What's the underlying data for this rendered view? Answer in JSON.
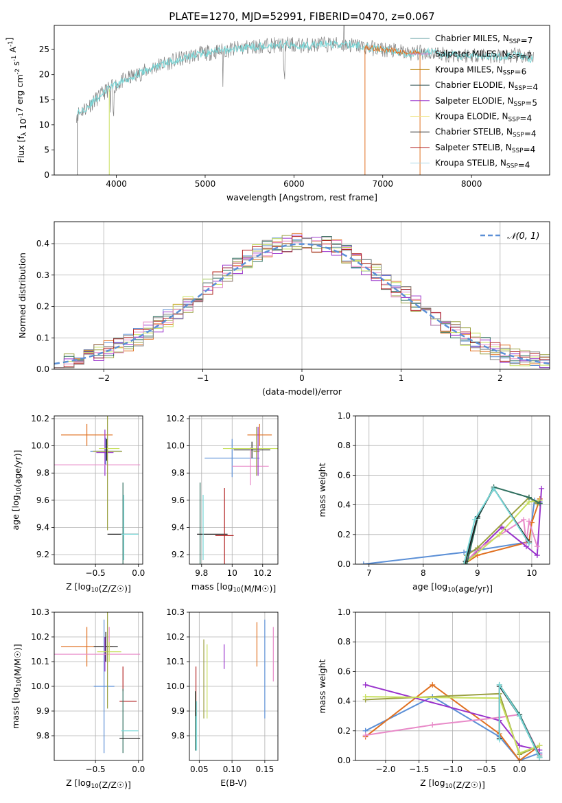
{
  "figure_title": "PLATE=1270, MJD=52991, FIBERID=0470, z=0.067",
  "chart_data": [
    {
      "id": "spectrum",
      "type": "line",
      "title": "PLATE=1270, MJD=52991, FIBERID=0470, z=0.067",
      "xlabel": "wavelength [Angstrom, rest frame]",
      "ylabel": "Flux [f_λ 10^-17 erg cm^-2 s^-1 A^-1]",
      "xlim": [
        3300,
        8880
      ],
      "ylim": [
        0,
        29.8
      ],
      "xticks": [
        4000,
        5000,
        6000,
        7000,
        8000
      ],
      "yticks": [
        0,
        5,
        10,
        15,
        20,
        25
      ],
      "legend_position": "right",
      "legend": [
        {
          "label": "Chabrier MILES, N_SSP=7",
          "color": "#5f9ea0"
        },
        {
          "label": "Salpeter MILES, N_SSP=7",
          "color": "#da70d6"
        },
        {
          "label": "Kroupa MILES, N_SSP=6",
          "color": "#b8860b"
        },
        {
          "label": "Chabrier ELODIE, N_SSP=4",
          "color": "#2f4f4f"
        },
        {
          "label": "Salpeter ELODIE, N_SSP=5",
          "color": "#9932cc"
        },
        {
          "label": "Kroupa ELODIE, N_SSP=4",
          "color": "#f0e68c"
        },
        {
          "label": "Chabrier STELIB, N_SSP=4",
          "color": "#2e2e2e"
        },
        {
          "label": "Salpeter STELIB, N_SSP=4",
          "color": "#b22222"
        },
        {
          "label": "Kroupa STELIB, N_SSP=4",
          "color": "#add8e6"
        }
      ],
      "continuum": {
        "x": [
          3550,
          3700,
          3900,
          4100,
          4300,
          4500,
          4700,
          4900,
          5100,
          5300,
          5500,
          5700,
          5900,
          6100,
          6300,
          6500,
          6700,
          6900,
          7100,
          7300,
          7500,
          7700,
          7900,
          8100,
          8300,
          8500,
          8700
        ],
        "y": [
          12.0,
          14.0,
          17.0,
          19.0,
          20.5,
          22.0,
          23.0,
          24.0,
          24.5,
          25.0,
          25.5,
          25.8,
          26.0,
          25.8,
          26.0,
          26.0,
          25.8,
          25.2,
          24.8,
          24.2,
          24.5,
          24.0,
          23.8,
          24.0,
          23.5,
          23.8,
          23.0
        ]
      },
      "colors": {
        "data": "#808080",
        "model": "#78d8d8",
        "orange": "#e07020"
      }
    },
    {
      "id": "residuals",
      "type": "histogram",
      "xlabel": "(data-model)/error",
      "ylabel": "Normed distribution",
      "xlim": [
        -2.5,
        2.5
      ],
      "ylim": [
        0,
        0.47
      ],
      "xticks": [
        -2,
        -1,
        0,
        1,
        2
      ],
      "yticks": [
        0,
        0.1,
        0.2,
        0.3,
        0.4
      ],
      "bins": 50,
      "legend": [
        {
          "label": "𝒩(0, 1)",
          "color": "#5b8fd6"
        }
      ],
      "hist_colors": [
        "#5b8fd6",
        "#e07020",
        "#9aa040",
        "#2f6f5f",
        "#9932cc",
        "#c8e060",
        "#e88ac8",
        "#b22222",
        "#8a8a8a"
      ]
    },
    {
      "id": "age-vs-z",
      "type": "errorbar",
      "xlabel": "Z [log10(Z/Z☉)]",
      "ylabel": "age [log10(age/yr)]",
      "xlim": [
        -0.98,
        0.05
      ],
      "ylim": [
        9.13,
        10.22
      ],
      "xticks": [
        -0.5,
        0.0
      ],
      "xticklabels": [
        "−0.5",
        "0.0"
      ],
      "yticks": [
        9.2,
        9.4,
        9.6,
        9.8,
        10.0,
        10.2
      ],
      "points": [
        {
          "x": -0.6,
          "y": 10.08,
          "xerr": 0.3,
          "yerr": 0.08,
          "color": "#e07020"
        },
        {
          "x": -0.38,
          "y": 9.96,
          "xerr": 0.18,
          "yerr": 0.1,
          "color": "#5b8fd6"
        },
        {
          "x": -0.39,
          "y": 9.95,
          "xerr": 0.1,
          "yerr": 0.17,
          "color": "#9932cc"
        },
        {
          "x": -0.48,
          "y": 9.86,
          "xerr": 0.5,
          "yerr": 0.0,
          "color": "#e88ac8"
        },
        {
          "x": -0.36,
          "y": 9.96,
          "xerr": 0.17,
          "yerr": 0.58,
          "color": "#9aa040"
        },
        {
          "x": -0.34,
          "y": 9.98,
          "xerr": 0.12,
          "yerr": 0.0,
          "color": "#c8e060"
        },
        {
          "x": -0.37,
          "y": 9.97,
          "xerr": 0.0,
          "yerr": 0.08,
          "color": "#1f1f1f"
        },
        {
          "x": -0.18,
          "y": 9.35,
          "xerr": 0.0,
          "yerr": 0.38,
          "color": "#2f6f5f"
        },
        {
          "x": -0.18,
          "y": 9.35,
          "xerr": 0.18,
          "yerr": 0.0,
          "color": "#1f1f1f"
        },
        {
          "x": -0.17,
          "y": 9.4,
          "xerr": 0.0,
          "yerr": 0.24,
          "color": "#78d8d8"
        },
        {
          "x": -0.1,
          "y": 9.35,
          "xerr": 0.1,
          "yerr": 0.0,
          "color": "#78d8d8"
        }
      ]
    },
    {
      "id": "age-vs-mass",
      "type": "errorbar",
      "xlabel": "mass [log10(M/M☉)]",
      "xlim": [
        9.72,
        10.3
      ],
      "ylim": [
        9.13,
        10.22
      ],
      "xticks": [
        9.8,
        10.0,
        10.2
      ],
      "yticks": [
        9.2,
        9.4,
        9.6,
        9.8,
        10.0,
        10.2
      ],
      "points": [
        {
          "x": 10.18,
          "y": 10.08,
          "xerr": 0.08,
          "yerr": 0.08,
          "color": "#e07020"
        },
        {
          "x": 10.0,
          "y": 9.91,
          "xerr": 0.18,
          "yerr": 0.14,
          "color": "#5b8fd6"
        },
        {
          "x": 10.13,
          "y": 9.97,
          "xerr": 0.12,
          "yerr": 0.06,
          "color": "#1f1f1f"
        },
        {
          "x": 10.12,
          "y": 9.85,
          "xerr": 0.12,
          "yerr": 0.14,
          "color": "#e88ac8"
        },
        {
          "x": 10.14,
          "y": 9.98,
          "xerr": 0.2,
          "yerr": 0.0,
          "color": "#c8e060"
        },
        {
          "x": 10.16,
          "y": 9.96,
          "xerr": 0.02,
          "yerr": 0.18,
          "color": "#9aa040"
        },
        {
          "x": 10.17,
          "y": 9.96,
          "xerr": 0.0,
          "yerr": 0.18,
          "color": "#9932cc"
        },
        {
          "x": 9.79,
          "y": 9.35,
          "xerr": 0.0,
          "yerr": 0.38,
          "color": "#2f6f5f"
        },
        {
          "x": 9.87,
          "y": 9.35,
          "xerr": 0.1,
          "yerr": 0.0,
          "color": "#1f1f1f"
        },
        {
          "x": 9.81,
          "y": 9.4,
          "xerr": 0.0,
          "yerr": 0.24,
          "color": "#78d8d8"
        },
        {
          "x": 9.95,
          "y": 9.34,
          "xerr": 0.06,
          "yerr": 0.35,
          "color": "#b22222"
        }
      ]
    },
    {
      "id": "weight-vs-age",
      "type": "line",
      "xlabel": "age [log10(age/yr)]",
      "ylabel": "mass weight",
      "xlim": [
        6.75,
        10.33
      ],
      "ylim": [
        0,
        1.0
      ],
      "xticks": [
        7,
        8,
        9,
        10
      ],
      "yticks": [
        0.0,
        0.2,
        0.4,
        0.6,
        0.8,
        1.0
      ],
      "series": [
        {
          "color": "#5b8fd6",
          "x": [
            6.9,
            8.75,
            9.95,
            10.05,
            10.15
          ],
          "y": [
            0.0,
            0.08,
            0.15,
            0.43,
            0.42
          ]
        },
        {
          "color": "#e07020",
          "x": [
            8.75,
            9.0,
            9.95,
            10.0,
            10.15
          ],
          "y": [
            0.0,
            0.06,
            0.15,
            0.28,
            0.44
          ]
        },
        {
          "color": "#9932cc",
          "x": [
            8.75,
            9.45,
            9.9,
            10.1,
            10.18
          ],
          "y": [
            0.0,
            0.25,
            0.12,
            0.06,
            0.51
          ]
        },
        {
          "color": "#e88ac8",
          "x": [
            8.75,
            9.0,
            9.85,
            9.9,
            9.95,
            10.1
          ],
          "y": [
            0.0,
            0.1,
            0.3,
            0.14,
            0.29,
            0.12
          ]
        },
        {
          "color": "#9aa040",
          "x": [
            8.75,
            8.8,
            9.0,
            9.95,
            10.1
          ],
          "y": [
            0.0,
            0.06,
            0.11,
            0.45,
            0.41
          ]
        },
        {
          "color": "#c8e060",
          "x": [
            8.75,
            9.4,
            9.95,
            10.15
          ],
          "y": [
            0.0,
            0.2,
            0.42,
            0.43
          ]
        },
        {
          "color": "#2f6f5f",
          "x": [
            8.8,
            9.0,
            9.3,
            9.95,
            10.15
          ],
          "y": [
            0.0,
            0.31,
            0.52,
            0.45,
            0.41
          ]
        },
        {
          "color": "#1f1f1f",
          "x": [
            8.78,
            9.0,
            9.3,
            9.95
          ],
          "y": [
            0.02,
            0.32,
            0.51,
            0.15
          ]
        },
        {
          "color": "#78d8d8",
          "x": [
            8.75,
            8.95,
            9.3,
            9.95
          ],
          "y": [
            0.0,
            0.3,
            0.51,
            0.14
          ]
        }
      ]
    },
    {
      "id": "mass-vs-z",
      "type": "errorbar",
      "xlabel": "Z [log10(Z/Z☉)]",
      "ylabel": "mass [log10(M/M☉)]",
      "xlim": [
        -0.98,
        0.05
      ],
      "ylim": [
        9.7,
        10.3
      ],
      "xticks": [
        -0.5,
        0.0
      ],
      "xticklabels": [
        "−0.5",
        "0.0"
      ],
      "yticks": [
        9.8,
        9.9,
        10.0,
        10.1,
        10.2,
        10.3
      ],
      "points": [
        {
          "x": -0.6,
          "y": 10.16,
          "xerr": 0.3,
          "yerr": 0.08,
          "color": "#e07020"
        },
        {
          "x": -0.38,
          "y": 10.16,
          "xerr": 0.14,
          "yerr": 0.06,
          "color": "#1f1f1f"
        },
        {
          "x": -0.4,
          "y": 10.0,
          "xerr": 0.12,
          "yerr": 0.27,
          "color": "#5b8fd6"
        },
        {
          "x": -0.39,
          "y": 10.13,
          "xerr": 0.0,
          "yerr": 0.07,
          "color": "#9932cc"
        },
        {
          "x": -0.34,
          "y": 10.19,
          "xerr": 0.0,
          "yerr": 0.05,
          "color": "#e88ac8"
        },
        {
          "x": -0.48,
          "y": 10.13,
          "xerr": 0.5,
          "yerr": 0.0,
          "color": "#e88ac8"
        },
        {
          "x": -0.34,
          "y": 10.14,
          "xerr": 0.14,
          "yerr": 0.04,
          "color": "#c8e060"
        },
        {
          "x": -0.36,
          "y": 10.13,
          "xerr": 0.0,
          "yerr": 0.22,
          "color": "#9aa040"
        },
        {
          "x": -0.18,
          "y": 10.03,
          "xerr": 0.0,
          "yerr": 0.05,
          "color": "#b22222"
        },
        {
          "x": -0.12,
          "y": 9.94,
          "xerr": 0.1,
          "yerr": 0.0,
          "color": "#b22222"
        },
        {
          "x": -0.18,
          "y": 9.86,
          "xerr": 0.0,
          "yerr": 0.13,
          "color": "#2f6f5f"
        },
        {
          "x": -0.1,
          "y": 9.79,
          "xerr": 0.12,
          "yerr": 0.0,
          "color": "#1f1f1f"
        },
        {
          "x": -0.1,
          "y": 9.82,
          "xerr": 0.1,
          "yerr": 0.0,
          "color": "#78d8d8"
        }
      ]
    },
    {
      "id": "mass-vs-ebv",
      "type": "errorbar",
      "xlabel": "E(B-V)",
      "xlim": [
        0.035,
        0.17
      ],
      "ylim": [
        9.7,
        10.3
      ],
      "xticks": [
        0.05,
        0.1,
        0.15
      ],
      "xticklabels": [
        "0.05",
        "0.10",
        "0.15"
      ],
      "yticks": [
        9.8,
        9.9,
        10.0,
        10.1,
        10.2,
        10.3
      ],
      "points": [
        {
          "x": 0.045,
          "y": 9.98,
          "yerr": 0.1,
          "color": "#b22222"
        },
        {
          "x": 0.044,
          "y": 9.86,
          "yerr": 0.12,
          "color": "#2f6f5f"
        },
        {
          "x": 0.046,
          "y": 9.84,
          "yerr": 0.1,
          "color": "#78d8d8"
        },
        {
          "x": 0.057,
          "y": 10.03,
          "yerr": 0.16,
          "color": "#9aa040"
        },
        {
          "x": 0.062,
          "y": 10.02,
          "yerr": 0.15,
          "color": "#c8e060"
        },
        {
          "x": 0.088,
          "y": 10.12,
          "yerr": 0.05,
          "color": "#9932cc"
        },
        {
          "x": 0.138,
          "y": 10.17,
          "yerr": 0.09,
          "color": "#e07020"
        },
        {
          "x": 0.15,
          "y": 10.07,
          "yerr": 0.2,
          "color": "#5b8fd6"
        },
        {
          "x": 0.163,
          "y": 10.13,
          "yerr": 0.11,
          "color": "#e88ac8"
        }
      ]
    },
    {
      "id": "weight-vs-z",
      "type": "line",
      "xlabel": "Z [log10(Z/Z☉)]",
      "ylabel": "mass weight",
      "xlim": [
        -2.45,
        0.45
      ],
      "ylim": [
        0,
        1.0
      ],
      "xticks": [
        -2.0,
        -1.5,
        -1.0,
        -0.5,
        0.0
      ],
      "xticklabels": [
        "−2.0",
        "−1.5",
        "−1.0",
        "−0.5",
        "0.0"
      ],
      "yticks": [
        0.0,
        0.2,
        0.4,
        0.6,
        0.8,
        1.0
      ],
      "series": [
        {
          "color": "#5b8fd6",
          "x": [
            -2.3,
            -1.3,
            -0.3,
            0.0,
            0.3
          ],
          "y": [
            0.2,
            0.43,
            0.16,
            0.0,
            0.05
          ]
        },
        {
          "color": "#e07020",
          "x": [
            -2.3,
            -1.3,
            -0.3,
            0.0,
            0.3
          ],
          "y": [
            0.16,
            0.51,
            0.18,
            0.0,
            0.1
          ]
        },
        {
          "color": "#9932cc",
          "x": [
            -2.3,
            -0.3,
            0.0,
            0.3
          ],
          "y": [
            0.51,
            0.27,
            0.1,
            0.07
          ]
        },
        {
          "color": "#e88ac8",
          "x": [
            -2.3,
            -1.3,
            -0.3,
            0.0,
            0.3
          ],
          "y": [
            0.17,
            0.24,
            0.29,
            0.31,
            0.04
          ]
        },
        {
          "color": "#9aa040",
          "x": [
            -2.3,
            -0.3,
            0.0,
            0.3
          ],
          "y": [
            0.41,
            0.45,
            0.04,
            0.1
          ]
        },
        {
          "color": "#c8e060",
          "x": [
            -2.3,
            -0.3,
            0.0,
            0.3
          ],
          "y": [
            0.43,
            0.42,
            0.05,
            0.1
          ]
        },
        {
          "color": "#2f6f5f",
          "x": [
            -0.3,
            0.0,
            0.3
          ],
          "y": [
            0.51,
            0.31,
            0.03
          ]
        },
        {
          "color": "#1f1f1f",
          "x": [
            -0.3,
            -0.3,
            0.0,
            0.3
          ],
          "y": [
            0.15,
            0.5,
            0.3,
            0.02
          ]
        },
        {
          "color": "#78d8d8",
          "x": [
            -0.3,
            -0.3,
            0.0,
            0.3
          ],
          "y": [
            0.14,
            0.51,
            0.3,
            0.02
          ]
        }
      ]
    }
  ]
}
